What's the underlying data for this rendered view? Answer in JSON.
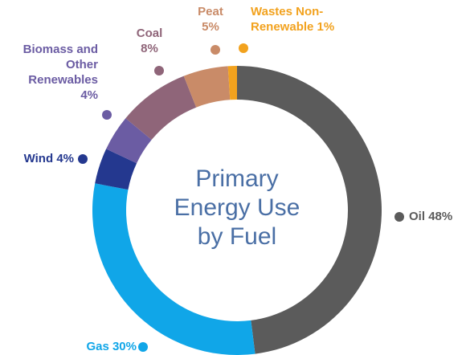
{
  "chart_data": {
    "type": "donut",
    "title": "Primary Energy Use by Fuel",
    "categories": [
      "Oil",
      "Gas",
      "Wind",
      "Biomass and Other Renewables",
      "Coal",
      "Peat",
      "Wastes Non-Renewable"
    ],
    "values": [
      48,
      30,
      4,
      4,
      8,
      5,
      1
    ],
    "value_labels": [
      "48%",
      "30%",
      "4%",
      "4%",
      "8%",
      "5%",
      "1%"
    ],
    "colors": [
      "#5b5b5b",
      "#10a6e8",
      "#24388f",
      "#6b5ca3",
      "#8f6579",
      "#c98b68",
      "#f2a21e"
    ]
  }
}
